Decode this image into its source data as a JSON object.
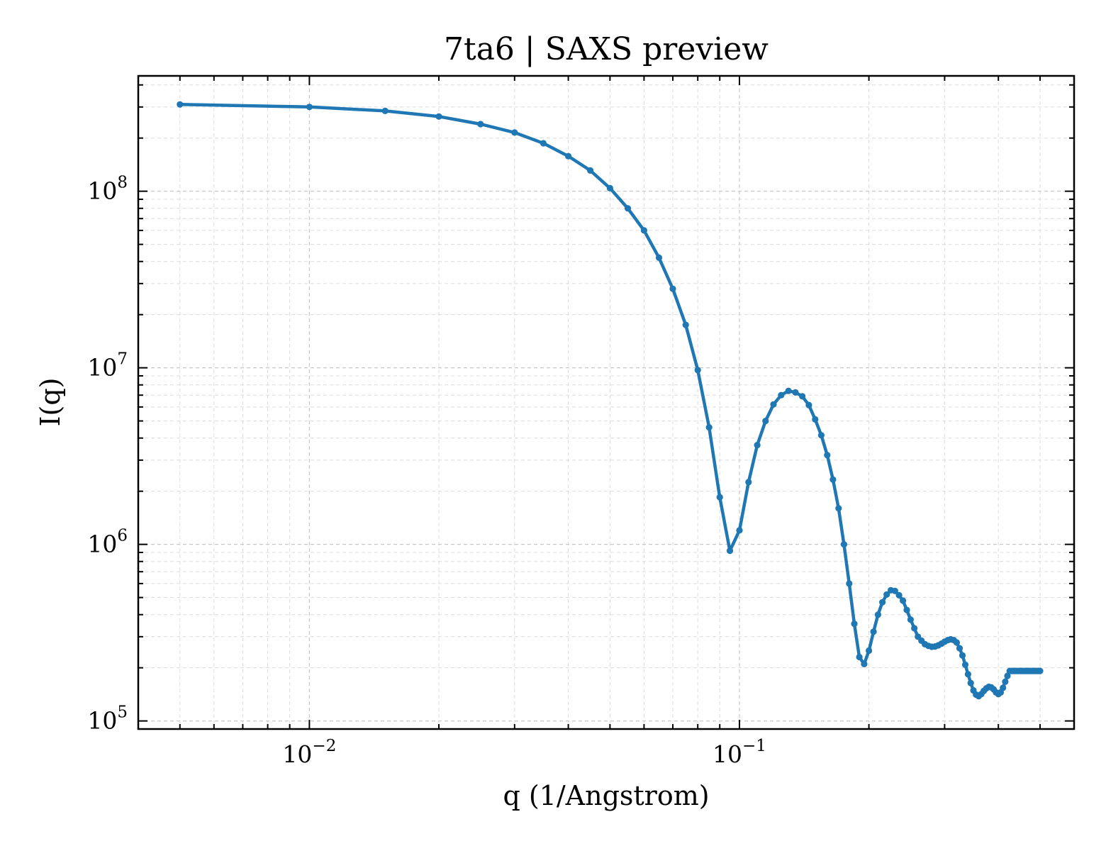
{
  "chart_data": {
    "type": "line",
    "title": "7ta6 | SAXS preview",
    "xlabel": "q (1/Angstrom)",
    "ylabel": "I(q)",
    "xscale": "log",
    "yscale": "log",
    "xlim": [
      0.004,
      0.6
    ],
    "ylim": [
      90000,
      450000000
    ],
    "grid": true,
    "color": "#1f77b4",
    "xticks": [
      {
        "value": 0.01,
        "base": "10",
        "exp": "−2"
      },
      {
        "value": 0.1,
        "base": "10",
        "exp": "−1"
      }
    ],
    "yticks": [
      {
        "value": 100000,
        "base": "10",
        "exp": "5"
      },
      {
        "value": 1000000,
        "base": "10",
        "exp": "6"
      },
      {
        "value": 10000000,
        "base": "10",
        "exp": "7"
      },
      {
        "value": 100000000,
        "base": "10",
        "exp": "8"
      }
    ],
    "series": [
      {
        "x": [
          0.005,
          0.01,
          0.015,
          0.02,
          0.025,
          0.03,
          0.035,
          0.04,
          0.045,
          0.05,
          0.055,
          0.06,
          0.065,
          0.07,
          0.075,
          0.08,
          0.085,
          0.09,
          0.095,
          0.1,
          0.105,
          0.11,
          0.115,
          0.12,
          0.125,
          0.13,
          0.135,
          0.14,
          0.145,
          0.15,
          0.155,
          0.16,
          0.165,
          0.17,
          0.175,
          0.18,
          0.185,
          0.19,
          0.195,
          0.2,
          0.205,
          0.21,
          0.215,
          0.22,
          0.225,
          0.23,
          0.235,
          0.24,
          0.245,
          0.25,
          0.255,
          0.26,
          0.265,
          0.27,
          0.275,
          0.28,
          0.285,
          0.29,
          0.295,
          0.3,
          0.305,
          0.31,
          0.315,
          0.32,
          0.325,
          0.33,
          0.335,
          0.34,
          0.345,
          0.35,
          0.355,
          0.36,
          0.365,
          0.37,
          0.375,
          0.38,
          0.385,
          0.39,
          0.395,
          0.4,
          0.405,
          0.41,
          0.415,
          0.42,
          0.425,
          0.43,
          0.435,
          0.44,
          0.445,
          0.45,
          0.455,
          0.46,
          0.465,
          0.47,
          0.475,
          0.48,
          0.485,
          0.49,
          0.495,
          0.5
        ],
        "y": [
          310000000,
          300000000,
          285000000,
          265000000,
          240000000,
          215000000,
          187000000,
          158000000,
          131000000,
          104000000,
          80000000,
          60000000,
          42000000,
          28000000,
          17500000,
          9700000,
          4600000,
          1850000,
          920000,
          1200000,
          2250000,
          3650000,
          5000000,
          6200000,
          7000000,
          7400000,
          7250000,
          6900000,
          6150000,
          5100000,
          4150000,
          3200000,
          2330000,
          1600000,
          1000000,
          600000,
          355000,
          230000,
          210000,
          250000,
          320000,
          400000,
          470000,
          520000,
          550000,
          545000,
          515000,
          480000,
          425000,
          375000,
          335000,
          300000,
          285000,
          272000,
          266000,
          263000,
          264000,
          268000,
          274000,
          281000,
          287000,
          290000,
          287000,
          278000,
          258000,
          235000,
          208000,
          184000,
          164000,
          149000,
          141000,
          138000,
          142000,
          148000,
          153000,
          156000,
          155000,
          151000,
          145000,
          142000,
          145000,
          154000,
          167000,
          180000,
          192000,
          192000,
          192000,
          192000,
          192000,
          192000,
          192000,
          192000,
          192000,
          192000,
          192000,
          192000,
          192000,
          192000,
          192000,
          192000
        ]
      }
    ]
  }
}
